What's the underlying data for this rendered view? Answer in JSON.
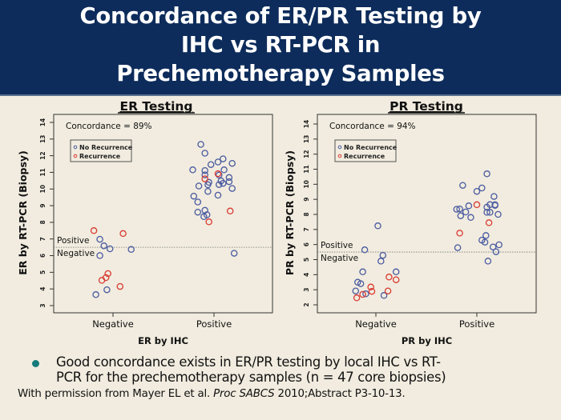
{
  "header": {
    "title_lines": [
      "Concordance of ER/PR Testing by",
      "IHC vs RT-PCR in",
      "Prechemotherapy Samples"
    ],
    "background": "#0d2c5b"
  },
  "bullet": {
    "line1": "Good concordance exists in ER/PR testing by local IHC vs RT-",
    "line2": "PCR for the prechemotherapy samples (n = 47 core biopsies)",
    "color": "#157a7a"
  },
  "citation": {
    "prefix": "With permission from Mayer EL et al. ",
    "journal": "Proc SABCS",
    "suffix": " 2010;Abstract P3-10-13."
  },
  "chart_data": [
    {
      "type": "scatter",
      "title": "ER Testing",
      "xlabel": "ER by IHC",
      "ylabel": "ER by RT-PCR (Biopsy)",
      "categories": [
        "Negative",
        "Positive"
      ],
      "ylim": [
        2.6,
        14.1
      ],
      "yticks": [
        3,
        4,
        5,
        6,
        7,
        8,
        9,
        10,
        11,
        12,
        13,
        14
      ],
      "annotation": "Concordance = 89%",
      "threshold": {
        "value": 6.5,
        "above_label": "Positive",
        "below_label": "Negative"
      },
      "legend": {
        "placement": "top-left",
        "entries": [
          {
            "name": "No Recurrence",
            "color": "#4a5aa0"
          },
          {
            "name": "Recurrence",
            "color": "#d93a32"
          }
        ]
      },
      "series": [
        {
          "name": "No Recurrence",
          "color": "#4a5aa0",
          "points": [
            {
              "x": "Negative",
              "jitter": -0.13,
              "y": 6.98
            },
            {
              "x": "Negative",
              "jitter": -0.09,
              "y": 6.59
            },
            {
              "x": "Negative",
              "jitter": -0.03,
              "y": 6.41
            },
            {
              "x": "Negative",
              "jitter": 0.18,
              "y": 6.37
            },
            {
              "x": "Negative",
              "jitter": -0.13,
              "y": 6.0
            },
            {
              "x": "Negative",
              "jitter": -0.06,
              "y": 3.95
            },
            {
              "x": "Negative",
              "jitter": -0.17,
              "y": 3.66
            },
            {
              "x": "Positive",
              "jitter": 0.2,
              "y": 6.14
            },
            {
              "x": "Positive",
              "jitter": -0.13,
              "y": 12.68
            },
            {
              "x": "Positive",
              "jitter": -0.09,
              "y": 12.15
            },
            {
              "x": "Positive",
              "jitter": 0.09,
              "y": 11.81
            },
            {
              "x": "Positive",
              "jitter": 0.04,
              "y": 11.62
            },
            {
              "x": "Positive",
              "jitter": 0.18,
              "y": 11.54
            },
            {
              "x": "Positive",
              "jitter": -0.03,
              "y": 11.47
            },
            {
              "x": "Positive",
              "jitter": -0.21,
              "y": 11.15
            },
            {
              "x": "Positive",
              "jitter": -0.09,
              "y": 11.11
            },
            {
              "x": "Positive",
              "jitter": 0.1,
              "y": 11.15
            },
            {
              "x": "Positive",
              "jitter": -0.09,
              "y": 10.85
            },
            {
              "x": "Positive",
              "jitter": 0.05,
              "y": 10.84
            },
            {
              "x": "Positive",
              "jitter": 0.15,
              "y": 10.69
            },
            {
              "x": "Positive",
              "jitter": -0.05,
              "y": 10.4
            },
            {
              "x": "Positive",
              "jitter": 0.07,
              "y": 10.49
            },
            {
              "x": "Positive",
              "jitter": 0.15,
              "y": 10.44
            },
            {
              "x": "Positive",
              "jitter": 0.09,
              "y": 10.34
            },
            {
              "x": "Positive",
              "jitter": 0.05,
              "y": 10.27
            },
            {
              "x": "Positive",
              "jitter": -0.06,
              "y": 10.26
            },
            {
              "x": "Positive",
              "jitter": -0.15,
              "y": 10.18
            },
            {
              "x": "Positive",
              "jitter": 0.18,
              "y": 10.03
            },
            {
              "x": "Positive",
              "jitter": -0.06,
              "y": 9.86
            },
            {
              "x": "Positive",
              "jitter": -0.2,
              "y": 9.57
            },
            {
              "x": "Positive",
              "jitter": 0.04,
              "y": 9.63
            },
            {
              "x": "Positive",
              "jitter": -0.16,
              "y": 9.22
            },
            {
              "x": "Positive",
              "jitter": -0.09,
              "y": 8.72
            },
            {
              "x": "Positive",
              "jitter": -0.16,
              "y": 8.61
            },
            {
              "x": "Positive",
              "jitter": -0.07,
              "y": 8.45
            },
            {
              "x": "Positive",
              "jitter": -0.1,
              "y": 8.34
            }
          ]
        },
        {
          "name": "Recurrence",
          "color": "#d93a32",
          "points": [
            {
              "x": "Negative",
              "jitter": -0.19,
              "y": 7.5
            },
            {
              "x": "Negative",
              "jitter": 0.1,
              "y": 7.33
            },
            {
              "x": "Negative",
              "jitter": -0.05,
              "y": 4.92
            },
            {
              "x": "Negative",
              "jitter": -0.07,
              "y": 4.68
            },
            {
              "x": "Negative",
              "jitter": -0.11,
              "y": 4.52
            },
            {
              "x": "Negative",
              "jitter": 0.07,
              "y": 4.15
            },
            {
              "x": "Positive",
              "jitter": -0.09,
              "y": 10.61
            },
            {
              "x": "Positive",
              "jitter": 0.04,
              "y": 10.92
            },
            {
              "x": "Positive",
              "jitter": 0.16,
              "y": 8.68
            },
            {
              "x": "Positive",
              "jitter": -0.05,
              "y": 8.03
            }
          ]
        }
      ]
    },
    {
      "type": "scatter",
      "title": "PR Testing",
      "xlabel": "PR by IHC",
      "ylabel": "PR by RT-PCR (Biopsy)",
      "categories": [
        "Negative",
        "Positive"
      ],
      "ylim": [
        1.5,
        14.2
      ],
      "yticks": [
        2,
        3,
        4,
        5,
        6,
        7,
        8,
        9,
        10,
        11,
        12,
        13,
        14
      ],
      "annotation": "Concordance = 94%",
      "threshold": {
        "value": 5.5,
        "above_label": "Positive",
        "below_label": "Negative"
      },
      "legend": {
        "placement": "top-left",
        "entries": [
          {
            "name": "No Recurrence",
            "color": "#4a5aa0"
          },
          {
            "name": "Recurrence",
            "color": "#d93a32"
          }
        ]
      },
      "series": [
        {
          "name": "No Recurrence",
          "color": "#4a5aa0",
          "points": [
            {
              "x": "Negative",
              "jitter": 0.02,
              "y": 7.24
            },
            {
              "x": "Negative",
              "jitter": -0.11,
              "y": 5.65
            },
            {
              "x": "Negative",
              "jitter": 0.07,
              "y": 5.28
            },
            {
              "x": "Negative",
              "jitter": 0.05,
              "y": 4.9
            },
            {
              "x": "Negative",
              "jitter": -0.13,
              "y": 4.19
            },
            {
              "x": "Negative",
              "jitter": 0.2,
              "y": 4.19
            },
            {
              "x": "Negative",
              "jitter": -0.18,
              "y": 3.5
            },
            {
              "x": "Negative",
              "jitter": -0.15,
              "y": 3.4
            },
            {
              "x": "Negative",
              "jitter": -0.2,
              "y": 2.92
            },
            {
              "x": "Negative",
              "jitter": -0.1,
              "y": 2.73
            },
            {
              "x": "Negative",
              "jitter": 0.08,
              "y": 2.62
            },
            {
              "x": "Positive",
              "jitter": 0.1,
              "y": 10.69
            },
            {
              "x": "Positive",
              "jitter": -0.14,
              "y": 9.93
            },
            {
              "x": "Positive",
              "jitter": 0.05,
              "y": 9.75
            },
            {
              "x": "Positive",
              "jitter": 0.0,
              "y": 9.53
            },
            {
              "x": "Positive",
              "jitter": 0.17,
              "y": 9.19
            },
            {
              "x": "Positive",
              "jitter": 0.1,
              "y": 8.48
            },
            {
              "x": "Positive",
              "jitter": 0.13,
              "y": 8.65
            },
            {
              "x": "Positive",
              "jitter": 0.18,
              "y": 8.64
            },
            {
              "x": "Positive",
              "jitter": 0.18,
              "y": 8.6
            },
            {
              "x": "Positive",
              "jitter": -0.08,
              "y": 8.57
            },
            {
              "x": "Positive",
              "jitter": -0.2,
              "y": 8.34
            },
            {
              "x": "Positive",
              "jitter": -0.17,
              "y": 8.36
            },
            {
              "x": "Positive",
              "jitter": -0.11,
              "y": 8.16
            },
            {
              "x": "Positive",
              "jitter": 0.1,
              "y": 8.14
            },
            {
              "x": "Positive",
              "jitter": 0.13,
              "y": 8.14
            },
            {
              "x": "Positive",
              "jitter": -0.16,
              "y": 7.91
            },
            {
              "x": "Positive",
              "jitter": 0.21,
              "y": 8.0
            },
            {
              "x": "Positive",
              "jitter": -0.06,
              "y": 7.8
            },
            {
              "x": "Positive",
              "jitter": 0.09,
              "y": 6.6
            },
            {
              "x": "Positive",
              "jitter": 0.05,
              "y": 6.29
            },
            {
              "x": "Positive",
              "jitter": 0.08,
              "y": 6.16
            },
            {
              "x": "Positive",
              "jitter": -0.19,
              "y": 5.79
            },
            {
              "x": "Positive",
              "jitter": 0.16,
              "y": 5.84
            },
            {
              "x": "Positive",
              "jitter": 0.22,
              "y": 5.98
            },
            {
              "x": "Positive",
              "jitter": 0.19,
              "y": 5.52
            },
            {
              "x": "Positive",
              "jitter": 0.11,
              "y": 4.9
            }
          ]
        },
        {
          "name": "Recurrence",
          "color": "#d93a32",
          "points": [
            {
              "x": "Negative",
              "jitter": 0.13,
              "y": 3.84
            },
            {
              "x": "Negative",
              "jitter": 0.2,
              "y": 3.66
            },
            {
              "x": "Negative",
              "jitter": -0.05,
              "y": 3.18
            },
            {
              "x": "Negative",
              "jitter": -0.04,
              "y": 2.89
            },
            {
              "x": "Negative",
              "jitter": 0.12,
              "y": 2.92
            },
            {
              "x": "Negative",
              "jitter": -0.13,
              "y": 2.69
            },
            {
              "x": "Negative",
              "jitter": -0.19,
              "y": 2.46
            },
            {
              "x": "Positive",
              "jitter": 0.0,
              "y": 8.64
            },
            {
              "x": "Positive",
              "jitter": 0.12,
              "y": 7.45
            },
            {
              "x": "Positive",
              "jitter": -0.17,
              "y": 6.76
            }
          ]
        }
      ]
    }
  ]
}
